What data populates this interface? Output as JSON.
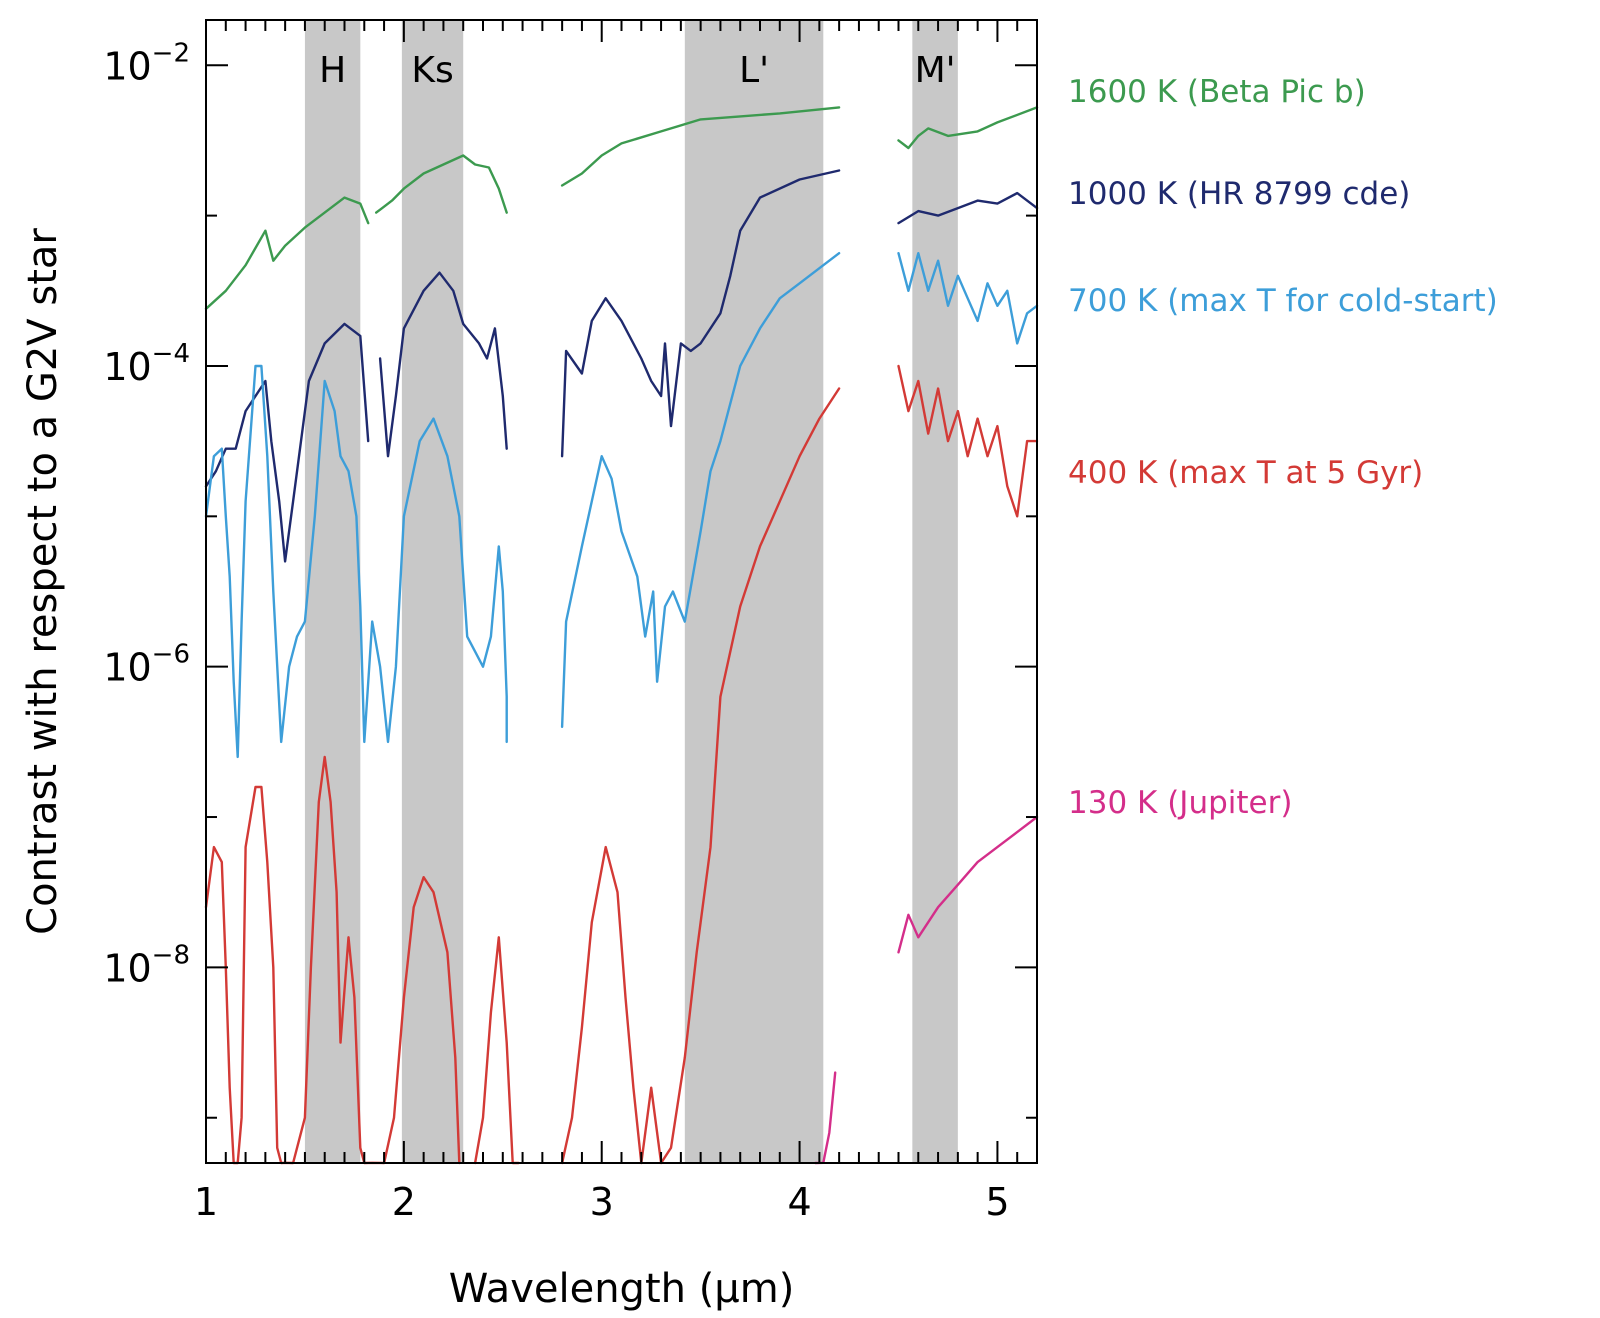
{
  "chart_data": {
    "type": "line",
    "title": "",
    "xlabel": "Wavelength (μm)",
    "ylabel": "Contrast with respect to a G2V star",
    "xlim": [
      1.0,
      5.2
    ],
    "ylim": [
      5e-10,
      0.02
    ],
    "yscale": "log",
    "x_ticks": [
      {
        "value": 1,
        "label": "1"
      },
      {
        "value": 2,
        "label": "2"
      },
      {
        "value": 3,
        "label": "3"
      },
      {
        "value": 4,
        "label": "4"
      },
      {
        "value": 5,
        "label": "5"
      }
    ],
    "y_ticks": [
      {
        "value": 0.01,
        "base": "10",
        "exp": "−2"
      },
      {
        "value": 0.0001,
        "base": "10",
        "exp": "−4"
      },
      {
        "value": 1e-06,
        "base": "10",
        "exp": "−6"
      },
      {
        "value": 1e-08,
        "base": "10",
        "exp": "−8"
      }
    ],
    "bands": [
      {
        "label": "H",
        "start": 1.5,
        "end": 1.78
      },
      {
        "label": "Ks",
        "start": 1.99,
        "end": 2.3
      },
      {
        "label": "L'",
        "start": 3.42,
        "end": 4.12
      },
      {
        "label": "M'",
        "start": 4.57,
        "end": 4.8
      }
    ],
    "series": [
      {
        "name": "1600 K (Beta Pic b)",
        "color": "#3c9a4f",
        "points": [
          [
            1.0,
            -3.62
          ],
          [
            1.1,
            -3.5
          ],
          [
            1.2,
            -3.33
          ],
          [
            1.3,
            -3.1
          ],
          [
            1.34,
            -3.3
          ],
          [
            1.4,
            -3.2
          ],
          [
            1.5,
            -3.08
          ],
          [
            1.6,
            -2.98
          ],
          [
            1.7,
            -2.88
          ],
          [
            1.78,
            -2.92
          ],
          [
            1.82,
            -3.05
          ],
          null,
          [
            1.86,
            -2.98
          ],
          [
            1.94,
            -2.9
          ],
          [
            2.0,
            -2.82
          ],
          [
            2.1,
            -2.72
          ],
          [
            2.2,
            -2.66
          ],
          [
            2.3,
            -2.6
          ],
          [
            2.36,
            -2.66
          ],
          [
            2.43,
            -2.68
          ],
          [
            2.48,
            -2.82
          ],
          [
            2.52,
            -2.98
          ],
          null,
          [
            2.8,
            -2.8
          ],
          [
            2.9,
            -2.72
          ],
          [
            3.0,
            -2.6
          ],
          [
            3.1,
            -2.52
          ],
          [
            3.3,
            -2.44
          ],
          [
            3.5,
            -2.36
          ],
          [
            3.7,
            -2.34
          ],
          [
            3.9,
            -2.32
          ],
          [
            4.2,
            -2.28
          ],
          null,
          [
            4.5,
            -2.5
          ],
          [
            4.55,
            -2.55
          ],
          [
            4.6,
            -2.47
          ],
          [
            4.65,
            -2.42
          ],
          [
            4.75,
            -2.47
          ],
          [
            4.9,
            -2.44
          ],
          [
            5.0,
            -2.38
          ],
          [
            5.2,
            -2.28
          ]
        ]
      },
      {
        "name": "1000 K (HR 8799 cde)",
        "color": "#1f2a6e",
        "points": [
          [
            1.0,
            -4.8
          ],
          [
            1.05,
            -4.7
          ],
          [
            1.1,
            -4.55
          ],
          [
            1.15,
            -4.55
          ],
          [
            1.2,
            -4.3
          ],
          [
            1.3,
            -4.1
          ],
          [
            1.33,
            -4.5
          ],
          [
            1.37,
            -4.9
          ],
          [
            1.4,
            -5.3
          ],
          [
            1.44,
            -4.9
          ],
          [
            1.48,
            -4.5
          ],
          [
            1.52,
            -4.1
          ],
          [
            1.6,
            -3.85
          ],
          [
            1.7,
            -3.72
          ],
          [
            1.78,
            -3.8
          ],
          [
            1.82,
            -4.5
          ],
          null,
          [
            1.88,
            -3.95
          ],
          [
            1.92,
            -4.6
          ],
          [
            1.96,
            -4.2
          ],
          [
            2.0,
            -3.75
          ],
          [
            2.1,
            -3.5
          ],
          [
            2.18,
            -3.38
          ],
          [
            2.25,
            -3.5
          ],
          [
            2.3,
            -3.72
          ],
          [
            2.38,
            -3.85
          ],
          [
            2.42,
            -3.95
          ],
          [
            2.46,
            -3.75
          ],
          [
            2.5,
            -4.2
          ],
          [
            2.52,
            -4.55
          ],
          null,
          [
            2.8,
            -4.6
          ],
          [
            2.82,
            -3.9
          ],
          [
            2.9,
            -4.05
          ],
          [
            2.95,
            -3.7
          ],
          [
            3.02,
            -3.55
          ],
          [
            3.1,
            -3.7
          ],
          [
            3.2,
            -3.95
          ],
          [
            3.25,
            -4.1
          ],
          [
            3.3,
            -4.2
          ],
          [
            3.32,
            -3.85
          ],
          [
            3.35,
            -4.4
          ],
          [
            3.4,
            -3.85
          ],
          [
            3.45,
            -3.9
          ],
          [
            3.5,
            -3.85
          ],
          [
            3.6,
            -3.65
          ],
          [
            3.65,
            -3.4
          ],
          [
            3.7,
            -3.1
          ],
          [
            3.8,
            -2.88
          ],
          [
            4.0,
            -2.76
          ],
          [
            4.2,
            -2.7
          ],
          null,
          [
            4.5,
            -3.05
          ],
          [
            4.6,
            -2.97
          ],
          [
            4.7,
            -3.0
          ],
          [
            4.8,
            -2.95
          ],
          [
            4.9,
            -2.9
          ],
          [
            5.0,
            -2.92
          ],
          [
            5.1,
            -2.85
          ],
          [
            5.2,
            -2.95
          ]
        ]
      },
      {
        "name": "700 K (max T for cold-start)",
        "color": "#3d9ed9",
        "points": [
          [
            1.0,
            -5.0
          ],
          [
            1.04,
            -4.6
          ],
          [
            1.08,
            -4.55
          ],
          [
            1.1,
            -5.0
          ],
          [
            1.12,
            -5.4
          ],
          [
            1.14,
            -6.1
          ],
          [
            1.16,
            -6.6
          ],
          [
            1.18,
            -5.7
          ],
          [
            1.2,
            -4.9
          ],
          [
            1.25,
            -4.0
          ],
          [
            1.28,
            -4.0
          ],
          [
            1.31,
            -4.6
          ],
          [
            1.34,
            -5.5
          ],
          [
            1.38,
            -6.5
          ],
          [
            1.42,
            -6.0
          ],
          [
            1.46,
            -5.8
          ],
          [
            1.5,
            -5.7
          ],
          [
            1.55,
            -5.0
          ],
          [
            1.6,
            -4.1
          ],
          [
            1.65,
            -4.3
          ],
          [
            1.68,
            -4.6
          ],
          [
            1.72,
            -4.7
          ],
          [
            1.76,
            -5.0
          ],
          [
            1.78,
            -5.6
          ],
          [
            1.8,
            -6.5
          ],
          [
            1.84,
            -5.7
          ],
          [
            1.88,
            -6.0
          ],
          [
            1.92,
            -6.5
          ],
          [
            1.96,
            -6.0
          ],
          [
            2.0,
            -5.0
          ],
          [
            2.08,
            -4.5
          ],
          [
            2.15,
            -4.35
          ],
          [
            2.22,
            -4.6
          ],
          [
            2.28,
            -5.0
          ],
          [
            2.32,
            -5.8
          ],
          [
            2.36,
            -5.9
          ],
          [
            2.4,
            -6.0
          ],
          [
            2.44,
            -5.8
          ],
          [
            2.48,
            -5.2
          ],
          [
            2.5,
            -5.5
          ],
          [
            2.52,
            -6.2
          ],
          [
            2.52,
            -6.5
          ],
          null,
          [
            2.8,
            -6.4
          ],
          [
            2.82,
            -5.7
          ],
          [
            2.9,
            -5.2
          ],
          [
            2.95,
            -4.9
          ],
          [
            3.0,
            -4.6
          ],
          [
            3.05,
            -4.75
          ],
          [
            3.1,
            -5.1
          ],
          [
            3.18,
            -5.4
          ],
          [
            3.22,
            -5.8
          ],
          [
            3.26,
            -5.5
          ],
          [
            3.28,
            -6.1
          ],
          [
            3.32,
            -5.6
          ],
          [
            3.36,
            -5.5
          ],
          [
            3.42,
            -5.7
          ],
          [
            3.5,
            -5.1
          ],
          [
            3.55,
            -4.7
          ],
          [
            3.6,
            -4.5
          ],
          [
            3.7,
            -4.0
          ],
          [
            3.8,
            -3.75
          ],
          [
            3.9,
            -3.55
          ],
          [
            4.0,
            -3.45
          ],
          [
            4.1,
            -3.35
          ],
          [
            4.2,
            -3.25
          ],
          null,
          [
            4.5,
            -3.25
          ],
          [
            4.55,
            -3.5
          ],
          [
            4.6,
            -3.25
          ],
          [
            4.65,
            -3.5
          ],
          [
            4.7,
            -3.3
          ],
          [
            4.75,
            -3.6
          ],
          [
            4.8,
            -3.4
          ],
          [
            4.85,
            -3.55
          ],
          [
            4.9,
            -3.7
          ],
          [
            4.95,
            -3.45
          ],
          [
            5.0,
            -3.6
          ],
          [
            5.05,
            -3.5
          ],
          [
            5.1,
            -3.85
          ],
          [
            5.15,
            -3.65
          ],
          [
            5.2,
            -3.6
          ]
        ]
      },
      {
        "name": "400 K (max T at 5 Gyr)",
        "color": "#d33a36",
        "points": [
          [
            1.0,
            -7.6
          ],
          [
            1.04,
            -7.2
          ],
          [
            1.08,
            -7.3
          ],
          [
            1.1,
            -8.0
          ],
          [
            1.12,
            -8.8
          ],
          [
            1.14,
            -10.0
          ],
          [
            1.16,
            -9.5
          ],
          [
            1.18,
            -9.0
          ],
          [
            1.2,
            -7.2
          ],
          [
            1.25,
            -6.8
          ],
          [
            1.28,
            -6.8
          ],
          [
            1.31,
            -7.3
          ],
          [
            1.34,
            -8.0
          ],
          [
            1.36,
            -9.2
          ],
          [
            1.38,
            -10.0
          ],
          [
            1.4,
            -9.3
          ],
          [
            1.44,
            -10.0
          ],
          [
            1.5,
            -9.0
          ],
          [
            1.53,
            -8.0
          ],
          [
            1.57,
            -6.9
          ],
          [
            1.6,
            -6.6
          ],
          [
            1.63,
            -6.9
          ],
          [
            1.66,
            -7.5
          ],
          [
            1.68,
            -8.5
          ],
          [
            1.72,
            -7.8
          ],
          [
            1.75,
            -8.2
          ],
          [
            1.78,
            -9.2
          ],
          [
            1.8,
            -10.0
          ],
          [
            1.84,
            -9.3
          ],
          [
            1.9,
            -10.0
          ],
          [
            1.95,
            -9.0
          ],
          [
            2.0,
            -8.2
          ],
          [
            2.05,
            -7.6
          ],
          [
            2.1,
            -7.4
          ],
          [
            2.15,
            -7.5
          ],
          [
            2.22,
            -7.9
          ],
          [
            2.26,
            -8.6
          ],
          [
            2.28,
            -10.0
          ],
          null,
          [
            2.36,
            -9.5
          ],
          [
            2.4,
            -9.0
          ],
          [
            2.44,
            -8.3
          ],
          [
            2.48,
            -7.8
          ],
          [
            2.52,
            -8.5
          ],
          [
            2.55,
            -9.5
          ],
          [
            2.58,
            -10.0
          ],
          null,
          [
            2.8,
            -9.5
          ],
          [
            2.85,
            -9.0
          ],
          [
            2.9,
            -8.4
          ],
          [
            2.95,
            -7.7
          ],
          [
            3.02,
            -7.2
          ],
          [
            3.08,
            -7.5
          ],
          [
            3.12,
            -8.2
          ],
          [
            3.16,
            -8.8
          ],
          [
            3.2,
            -9.8
          ],
          [
            3.25,
            -8.8
          ],
          [
            3.3,
            -9.8
          ],
          [
            3.35,
            -9.2
          ],
          [
            3.42,
            -8.6
          ],
          [
            3.48,
            -7.9
          ],
          [
            3.55,
            -7.2
          ],
          [
            3.6,
            -6.2
          ],
          [
            3.7,
            -5.6
          ],
          [
            3.8,
            -5.2
          ],
          [
            3.9,
            -4.9
          ],
          [
            4.0,
            -4.6
          ],
          [
            4.1,
            -4.35
          ],
          [
            4.2,
            -4.15
          ],
          null,
          [
            4.5,
            -4.0
          ],
          [
            4.55,
            -4.3
          ],
          [
            4.6,
            -4.1
          ],
          [
            4.65,
            -4.45
          ],
          [
            4.7,
            -4.15
          ],
          [
            4.75,
            -4.5
          ],
          [
            4.8,
            -4.3
          ],
          [
            4.85,
            -4.6
          ],
          [
            4.9,
            -4.35
          ],
          [
            4.95,
            -4.6
          ],
          [
            5.0,
            -4.4
          ],
          [
            5.05,
            -4.8
          ],
          [
            5.1,
            -5.0
          ],
          [
            5.15,
            -4.5
          ],
          [
            5.2,
            -4.5
          ]
        ]
      },
      {
        "name": "130 K (Jupiter)",
        "color": "#d42e8a",
        "points": [
          [
            4.08,
            -10.0
          ],
          [
            4.12,
            -9.3
          ],
          [
            4.15,
            -9.1
          ],
          [
            4.18,
            -8.7
          ],
          null,
          [
            4.5,
            -7.9
          ],
          [
            4.55,
            -7.65
          ],
          [
            4.6,
            -7.8
          ],
          [
            4.7,
            -7.6
          ],
          [
            4.8,
            -7.45
          ],
          [
            4.9,
            -7.3
          ],
          [
            5.0,
            -7.2
          ],
          [
            5.1,
            -7.1
          ],
          [
            5.2,
            -7.0
          ]
        ]
      }
    ]
  }
}
